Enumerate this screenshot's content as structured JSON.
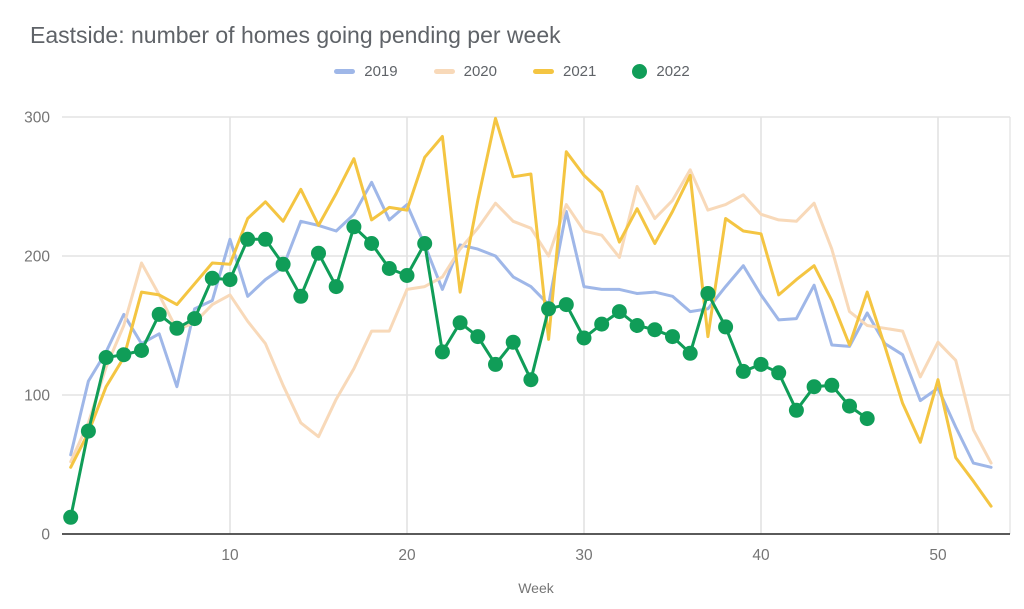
{
  "title": "Eastside: number of homes going pending per week",
  "colors": {
    "series_2019": "#9fb7e8",
    "series_2020": "#f8d9b9",
    "series_2021": "#f4c542",
    "series_2022": "#109d58",
    "gridline": "#e3e3e3",
    "axis_line": "#424242",
    "tick_label": "#757575",
    "title_text": "#5f6368"
  },
  "chart_data": {
    "type": "line",
    "title": "Eastside: number of homes going pending per week",
    "xlabel": "Week",
    "ylabel": "",
    "xlim": [
      1,
      54
    ],
    "ylim": [
      0,
      300
    ],
    "x_ticks": [
      10,
      20,
      30,
      40,
      50
    ],
    "y_ticks": [
      0,
      100,
      200,
      300
    ],
    "grid": true,
    "legend_position": "top",
    "x_is_week_number": true,
    "series": [
      {
        "name": "2019",
        "color": "#9fb7e8",
        "style": "line",
        "markers": false,
        "values": [
          57,
          110,
          131,
          158,
          137,
          144,
          106,
          162,
          168,
          212,
          171,
          183,
          192,
          225,
          222,
          218,
          230,
          253,
          226,
          237,
          208,
          176,
          208,
          205,
          200,
          185,
          178,
          165,
          232,
          178,
          176,
          176,
          173,
          174,
          171,
          160,
          162,
          178,
          193,
          172,
          154,
          155,
          179,
          136,
          135,
          159,
          137,
          129,
          96,
          105,
          77,
          51,
          48
        ]
      },
      {
        "name": "2020",
        "color": "#f8d9b9",
        "style": "line",
        "markers": false,
        "values": [
          52,
          80,
          120,
          150,
          195,
          172,
          147,
          152,
          165,
          172,
          153,
          137,
          107,
          80,
          70,
          97,
          119,
          146,
          146,
          176,
          178,
          185,
          205,
          220,
          238,
          225,
          220,
          200,
          237,
          218,
          215,
          199,
          250,
          227,
          240,
          262,
          233,
          237,
          244,
          230,
          226,
          225,
          238,
          205,
          160,
          150,
          148,
          146,
          113,
          138,
          125,
          75,
          51
        ]
      },
      {
        "name": "2021",
        "color": "#f4c542",
        "style": "line",
        "markers": false,
        "values": [
          48,
          73,
          106,
          127,
          174,
          172,
          165,
          180,
          195,
          194,
          227,
          239,
          225,
          248,
          222,
          245,
          270,
          226,
          235,
          233,
          271,
          286,
          174,
          240,
          299,
          257,
          259,
          140,
          275,
          258,
          246,
          210,
          234,
          209,
          232,
          258,
          142,
          227,
          218,
          216,
          172,
          183,
          193,
          168,
          136,
          174,
          135,
          94,
          66,
          111,
          55,
          38,
          20
        ]
      },
      {
        "name": "2022",
        "color": "#109d58",
        "style": "line",
        "markers": true,
        "values": [
          12,
          74,
          127,
          129,
          132,
          158,
          148,
          155,
          184,
          183,
          212,
          212,
          194,
          171,
          202,
          178,
          221,
          209,
          191,
          186,
          209,
          131,
          152,
          142,
          122,
          138,
          111,
          162,
          165,
          141,
          151,
          160,
          150,
          147,
          142,
          130,
          173,
          149,
          117,
          122,
          116,
          89,
          106,
          107,
          92,
          83
        ]
      }
    ]
  }
}
